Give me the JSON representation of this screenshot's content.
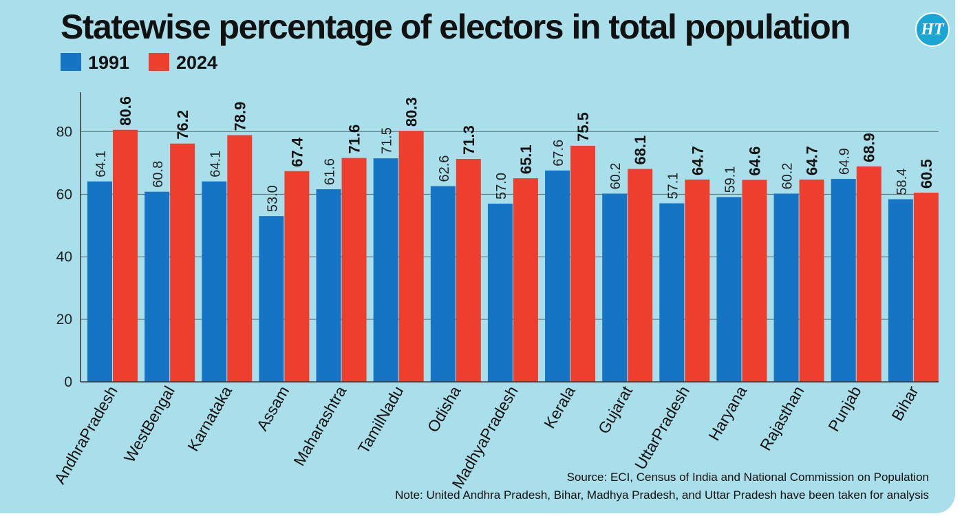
{
  "logo_text": "HT",
  "chart_data": {
    "type": "bar",
    "title": "Statewise percentage of electors in total population",
    "categories": [
      "AndhraPradesh",
      "WestBengal",
      "Karnataka",
      "Assam",
      "Maharashtra",
      "TamilNadu",
      "Odisha",
      "MadhyaPradesh",
      "Kerala",
      "Gujarat",
      "UttarPradesh",
      "Haryana",
      "Rajasthan",
      "Punjab",
      "Bihar"
    ],
    "series": [
      {
        "name": "1991",
        "color": "#1574c4",
        "values": [
          64.1,
          60.8,
          64.1,
          53.0,
          61.6,
          71.5,
          62.6,
          57.0,
          67.6,
          60.2,
          57.1,
          59.1,
          60.2,
          64.9,
          58.4
        ]
      },
      {
        "name": "2024",
        "color": "#ee3e2e",
        "values": [
          80.6,
          76.2,
          78.9,
          67.4,
          71.6,
          80.3,
          71.3,
          65.1,
          75.5,
          68.1,
          64.7,
          64.6,
          64.7,
          68.9,
          60.5
        ]
      }
    ],
    "yticks": [
      "0",
      "20",
      "40",
      "60",
      "80"
    ],
    "ylim": [
      0,
      90
    ],
    "grid": true,
    "legend_position": "top-left",
    "source": "Source: ECI, Census of India and National Commission on Population",
    "note": "Note: United Andhra Pradesh, Bihar, Madhya Pradesh, and Uttar Pradesh have been taken for analysis"
  }
}
